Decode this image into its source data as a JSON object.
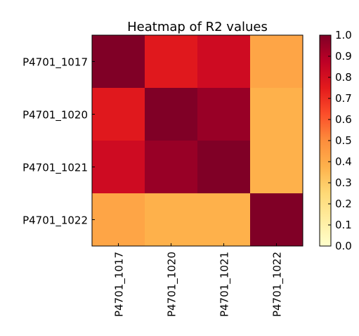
{
  "chart_data": {
    "type": "heatmap",
    "title": "Heatmap of R2 values",
    "xlabel": "",
    "ylabel": "",
    "rows": [
      "P4701_1017",
      "P4701_1020",
      "P4701_1021",
      "P4701_1022"
    ],
    "columns": [
      "P4701_1017",
      "P4701_1020",
      "P4701_1021",
      "P4701_1022"
    ],
    "values": [
      [
        1.0,
        0.76,
        0.82,
        0.42
      ],
      [
        0.76,
        1.0,
        0.95,
        0.38
      ],
      [
        0.82,
        0.95,
        1.0,
        0.38
      ],
      [
        0.42,
        0.38,
        0.38,
        1.0
      ]
    ],
    "colorbar": {
      "range": [
        0,
        1
      ],
      "ticks": [
        "0.0",
        "0.1",
        "0.2",
        "0.3",
        "0.4",
        "0.5",
        "0.6",
        "0.7",
        "0.8",
        "0.9",
        "1.0"
      ],
      "colormap": "YlOrRd",
      "stops": [
        "#ffffcc",
        "#ffeda0",
        "#fed976",
        "#feb24c",
        "#fd8d3c",
        "#fc4e2a",
        "#e31a1c",
        "#bd0026",
        "#800026"
      ]
    },
    "legend": "colorbar right",
    "grid": false
  }
}
